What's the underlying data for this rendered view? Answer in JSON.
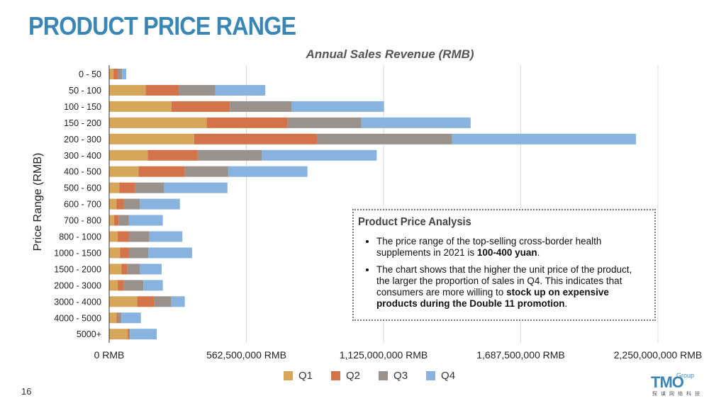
{
  "page": {
    "title": "PRODUCT PRICE RANGE",
    "page_number": "16"
  },
  "chart_data": {
    "type": "bar",
    "orientation": "horizontal",
    "stacked": true,
    "title": "Annual Sales Revenue (RMB)",
    "ylabel": "Price Range (RMB)",
    "xlabel": "",
    "xlim": [
      0,
      2250000000
    ],
    "x_ticks": [
      "0 RMB",
      "562,500,000 RMB",
      "1,125,000,000 RMB",
      "1,687,500,000 RMB",
      "2,250,000,000 RMB"
    ],
    "x_tick_values": [
      0,
      562500000,
      1125000000,
      1687500000,
      2250000000
    ],
    "grid": "vertical",
    "legend_position": "bottom",
    "categories": [
      "0 - 50",
      "50 - 100",
      "100 - 150",
      "150 - 200",
      "200 - 300",
      "300 - 400",
      "400 - 500",
      "500 - 600",
      "600 - 700",
      "700 - 800",
      "800 - 1000",
      "1000 - 1500",
      "1500 - 2000",
      "2000 - 3000",
      "3000 - 4000",
      "4000 - 5000",
      "5000+"
    ],
    "series": [
      {
        "name": "Q1",
        "color": "#d6a65b",
        "values": [
          17000000,
          150000000,
          255000000,
          400000000,
          348000000,
          158000000,
          120000000,
          42000000,
          30000000,
          20000000,
          35000000,
          45000000,
          50000000,
          35000000,
          115000000,
          30000000,
          75000000
        ]
      },
      {
        "name": "Q2",
        "color": "#d4734a",
        "values": [
          18000000,
          135000000,
          240000000,
          332000000,
          505000000,
          205000000,
          190000000,
          65000000,
          30000000,
          20000000,
          45000000,
          35000000,
          25000000,
          25000000,
          70000000,
          5000000,
          5000000
        ]
      },
      {
        "name": "Q3",
        "color": "#9a918a",
        "values": [
          18000000,
          150000000,
          252000000,
          302000000,
          553000000,
          262000000,
          178000000,
          118000000,
          65000000,
          40000000,
          85000000,
          80000000,
          50000000,
          80000000,
          70000000,
          15000000,
          5000000
        ]
      },
      {
        "name": "Q4",
        "color": "#87b3de",
        "values": [
          17000000,
          205000000,
          380000000,
          448000000,
          754000000,
          472000000,
          325000000,
          260000000,
          165000000,
          140000000,
          135000000,
          180000000,
          90000000,
          80000000,
          55000000,
          80000000,
          110000000
        ]
      }
    ]
  },
  "analysis": {
    "heading": "Product Price Analysis",
    "bullet1_pre": "The price range of the top-selling cross-border health supplements in 2021 is ",
    "bullet1_bold": "100-400 yuan",
    "bullet1_post": ".",
    "bullet2_pre": "The chart shows that the higher the unit price of the product, the larger the proportion of sales in Q4. This indicates that consumers are more willing to ",
    "bullet2_bold": "stock up on expensive products during the Double 11 promotion",
    "bullet2_post": "."
  },
  "logo": {
    "main": "TMO",
    "sub": "Group",
    "cn": "探谋网络科技"
  }
}
